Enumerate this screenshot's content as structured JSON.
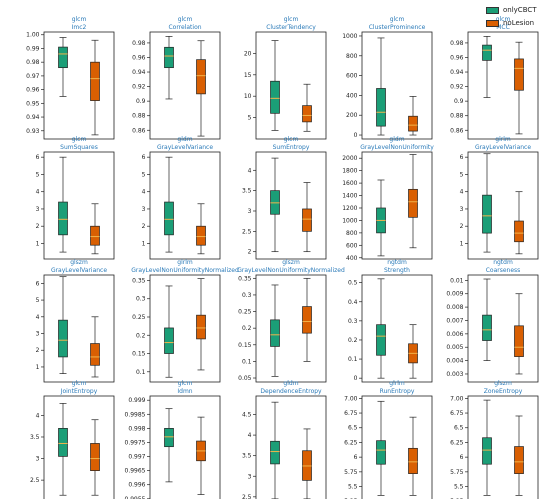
{
  "legend": {
    "items": [
      {
        "name": "onlyCBCT",
        "color": "#1b9e77"
      },
      {
        "name": "noLesion",
        "color": "#d95f02"
      }
    ]
  },
  "chart_data": [
    {
      "type": "box",
      "group": "glcm",
      "feature": "Imc2",
      "ticks": [
        0.93,
        0.94,
        0.95,
        0.96,
        0.97,
        0.98,
        0.99,
        "1.00"
      ],
      "ylim": [
        0.924,
        1.002
      ],
      "series": [
        {
          "name": "onlyCBCT",
          "whislo": 0.955,
          "q1": 0.976,
          "med": 0.986,
          "q3": 0.991,
          "whishi": 0.998
        },
        {
          "name": "noLesion",
          "whislo": 0.927,
          "q1": 0.952,
          "med": 0.968,
          "q3": 0.98,
          "whishi": 0.996
        }
      ]
    },
    {
      "type": "box",
      "group": "glcm",
      "feature": "Correlation",
      "ticks": [
        0.86,
        0.88,
        0.9,
        0.92,
        0.94,
        0.96,
        0.98
      ],
      "ylim": [
        0.848,
        0.995
      ],
      "series": [
        {
          "name": "onlyCBCT",
          "whislo": 0.903,
          "q1": 0.946,
          "med": 0.962,
          "q3": 0.974,
          "whishi": 0.989
        },
        {
          "name": "noLesion",
          "whislo": 0.852,
          "q1": 0.91,
          "med": 0.935,
          "q3": 0.957,
          "whishi": 0.983
        }
      ]
    },
    {
      "type": "box",
      "group": "glcm",
      "feature": "ClusterTendency",
      "ticks": [
        5,
        10,
        15,
        20
      ],
      "ylim": [
        0,
        25
      ],
      "series": [
        {
          "name": "onlyCBCT",
          "whislo": 2.0,
          "q1": 6.0,
          "med": 9.5,
          "q3": 13.5,
          "whishi": 23.0
        },
        {
          "name": "noLesion",
          "whislo": 1.8,
          "q1": 4.0,
          "med": 5.5,
          "q3": 7.8,
          "whishi": 12.8
        }
      ]
    },
    {
      "type": "box",
      "group": "glcm",
      "feature": "ClusterProminence",
      "ticks": [
        0,
        200,
        400,
        600,
        800,
        1000
      ],
      "ylim": [
        -40,
        1040
      ],
      "series": [
        {
          "name": "onlyCBCT",
          "whislo": 0,
          "q1": 90,
          "med": 230,
          "q3": 470,
          "whishi": 980
        },
        {
          "name": "noLesion",
          "whislo": 0,
          "q1": 40,
          "med": 100,
          "q3": 190,
          "whishi": 390
        }
      ]
    },
    {
      "type": "box",
      "group": "glcm",
      "feature": "MCC",
      "ticks": [
        0.86,
        0.88,
        0.9,
        0.92,
        0.94,
        0.96,
        0.98
      ],
      "ylim": [
        0.848,
        0.995
      ],
      "series": [
        {
          "name": "onlyCBCT",
          "whislo": 0.905,
          "q1": 0.956,
          "med": 0.97,
          "q3": 0.977,
          "whishi": 0.989
        },
        {
          "name": "noLesion",
          "whislo": 0.855,
          "q1": 0.915,
          "med": 0.945,
          "q3": 0.958,
          "whishi": 0.981
        }
      ]
    },
    {
      "type": "box",
      "group": "glcm",
      "feature": "SumSquares",
      "ticks": [
        1,
        2,
        3,
        4,
        5,
        6
      ],
      "ylim": [
        0.1,
        6.3
      ],
      "series": [
        {
          "name": "onlyCBCT",
          "whislo": 0.5,
          "q1": 1.5,
          "med": 2.4,
          "q3": 3.4,
          "whishi": 6.0
        },
        {
          "name": "noLesion",
          "whislo": 0.4,
          "q1": 0.9,
          "med": 1.4,
          "q3": 2.0,
          "whishi": 3.3
        }
      ]
    },
    {
      "type": "box",
      "group": "gldm",
      "feature": "GrayLevelVariance",
      "ticks": [
        1,
        2,
        3,
        4,
        5,
        6
      ],
      "ylim": [
        0.1,
        6.3
      ],
      "series": [
        {
          "name": "onlyCBCT",
          "whislo": 0.5,
          "q1": 1.5,
          "med": 2.4,
          "q3": 3.4,
          "whishi": 6.0
        },
        {
          "name": "noLesion",
          "whislo": 0.4,
          "q1": 0.9,
          "med": 1.4,
          "q3": 2.0,
          "whishi": 3.3
        }
      ]
    },
    {
      "type": "box",
      "group": "glcm",
      "feature": "SumEntropy",
      "ticks": [
        2.0,
        2.5,
        3.0,
        3.5,
        4.0
      ],
      "ylim": [
        1.82,
        4.45
      ],
      "series": [
        {
          "name": "onlyCBCT",
          "whislo": 2.0,
          "q1": 2.92,
          "med": 3.2,
          "q3": 3.5,
          "whishi": 4.3
        },
        {
          "name": "noLesion",
          "whislo": 2.0,
          "q1": 2.5,
          "med": 2.8,
          "q3": 3.05,
          "whishi": 3.7
        }
      ]
    },
    {
      "type": "box",
      "group": "gldm",
      "feature": "GrayLevelNonUniformity",
      "ticks": [
        400,
        600,
        800,
        1000,
        1200,
        1400,
        1600,
        1800,
        2000
      ],
      "ylim": [
        380,
        2100
      ],
      "series": [
        {
          "name": "onlyCBCT",
          "whislo": 430,
          "q1": 800,
          "med": 1000,
          "q3": 1200,
          "whishi": 1650
        },
        {
          "name": "noLesion",
          "whislo": 560,
          "q1": 1050,
          "med": 1300,
          "q3": 1500,
          "whishi": 2060
        }
      ]
    },
    {
      "type": "box",
      "group": "glrlm",
      "feature": "GrayLevelVariance",
      "ticks": [
        1,
        2,
        3,
        4,
        5,
        6
      ],
      "ylim": [
        0.1,
        6.3
      ],
      "series": [
        {
          "name": "onlyCBCT",
          "whislo": 0.5,
          "q1": 1.6,
          "med": 2.6,
          "q3": 3.8,
          "whishi": 6.2
        },
        {
          "name": "noLesion",
          "whislo": 0.4,
          "q1": 1.1,
          "med": 1.6,
          "q3": 2.3,
          "whishi": 4.0
        }
      ]
    },
    {
      "type": "box",
      "group": "glszm",
      "feature": "GrayLevelVariance",
      "ticks": [
        1,
        2,
        3,
        4,
        5,
        6
      ],
      "ylim": [
        0.1,
        6.5
      ],
      "series": [
        {
          "name": "onlyCBCT",
          "whislo": 0.6,
          "q1": 1.6,
          "med": 2.6,
          "q3": 3.8,
          "whishi": 6.4
        },
        {
          "name": "noLesion",
          "whislo": 0.4,
          "q1": 1.1,
          "med": 1.6,
          "q3": 2.4,
          "whishi": 4.0
        }
      ]
    },
    {
      "type": "box",
      "group": "glrlm",
      "feature": "GrayLevelNonUniformityNormalized",
      "ticks": [
        0.1,
        0.15,
        0.2,
        0.25,
        0.3,
        0.35
      ],
      "ylim": [
        0.072,
        0.365
      ],
      "series": [
        {
          "name": "onlyCBCT",
          "whislo": 0.085,
          "q1": 0.15,
          "med": 0.18,
          "q3": 0.22,
          "whishi": 0.335
        },
        {
          "name": "noLesion",
          "whislo": 0.105,
          "q1": 0.19,
          "med": 0.22,
          "q3": 0.255,
          "whishi": 0.355
        }
      ]
    },
    {
      "type": "box",
      "group": "glszm",
      "feature": "GrayLevelNonUniformityNormalized",
      "ticks": [
        0.05,
        0.1,
        0.15,
        0.2,
        0.25,
        0.3,
        0.35
      ],
      "ylim": [
        0.038,
        0.36
      ],
      "series": [
        {
          "name": "onlyCBCT",
          "whislo": 0.055,
          "q1": 0.145,
          "med": 0.18,
          "q3": 0.225,
          "whishi": 0.33
        },
        {
          "name": "noLesion",
          "whislo": 0.1,
          "q1": 0.185,
          "med": 0.22,
          "q3": 0.265,
          "whishi": 0.35
        }
      ]
    },
    {
      "type": "box",
      "group": "ngtdm",
      "feature": "Strength",
      "ticks": [
        0.0,
        0.1,
        0.2,
        0.3,
        0.4,
        0.5
      ],
      "ylim": [
        -0.02,
        0.54
      ],
      "series": [
        {
          "name": "onlyCBCT",
          "whislo": 0.0,
          "q1": 0.12,
          "med": 0.22,
          "q3": 0.28,
          "whishi": 0.52
        },
        {
          "name": "noLesion",
          "whislo": 0.0,
          "q1": 0.08,
          "med": 0.13,
          "q3": 0.18,
          "whishi": 0.28
        }
      ]
    },
    {
      "type": "box",
      "group": "ngtdm",
      "feature": "Coarseness",
      "ticks": [
        0.003,
        0.004,
        0.005,
        0.006,
        0.007,
        0.008,
        0.009,
        0.01
      ],
      "ylim": [
        0.0024,
        0.0104
      ],
      "series": [
        {
          "name": "onlyCBCT",
          "whislo": 0.004,
          "q1": 0.0055,
          "med": 0.0063,
          "q3": 0.0074,
          "whishi": 0.0101
        },
        {
          "name": "noLesion",
          "whislo": 0.003,
          "q1": 0.0043,
          "med": 0.005,
          "q3": 0.0066,
          "whishi": 0.009
        }
      ]
    },
    {
      "type": "box",
      "group": "glcm",
      "feature": "JointEntropy",
      "ticks": [
        2.0,
        2.5,
        3.0,
        3.5,
        4.0
      ],
      "ylim": [
        1.97,
        4.45
      ],
      "series": [
        {
          "name": "onlyCBCT",
          "whislo": 2.15,
          "q1": 3.05,
          "med": 3.35,
          "q3": 3.7,
          "whishi": 4.28
        },
        {
          "name": "noLesion",
          "whislo": 2.15,
          "q1": 2.72,
          "med": 3.0,
          "q3": 3.35,
          "whishi": 3.9
        }
      ]
    },
    {
      "type": "box",
      "group": "glcm",
      "feature": "Idmn",
      "ticks": [
        0.9955,
        0.996,
        0.9965,
        0.997,
        0.9975,
        0.998,
        0.9985,
        0.999
      ],
      "ylim": [
        0.99535,
        0.99915
      ],
      "series": [
        {
          "name": "onlyCBCT",
          "whislo": 0.9961,
          "q1": 0.99735,
          "med": 0.9977,
          "q3": 0.998,
          "whishi": 0.9987
        },
        {
          "name": "noLesion",
          "whislo": 0.99565,
          "q1": 0.99685,
          "med": 0.9972,
          "q3": 0.99755,
          "whishi": 0.9984
        }
      ]
    },
    {
      "type": "box",
      "group": "gldm",
      "feature": "DependenceEntropy",
      "ticks": [
        2.5,
        3.0,
        3.5,
        4.0,
        4.5
      ],
      "ylim": [
        2.35,
        4.95
      ],
      "series": [
        {
          "name": "onlyCBCT",
          "whislo": 2.45,
          "q1": 3.3,
          "med": 3.6,
          "q3": 3.85,
          "whishi": 4.8
        },
        {
          "name": "noLesion",
          "whislo": 2.45,
          "q1": 2.9,
          "med": 3.25,
          "q3": 3.62,
          "whishi": 4.15
        }
      ]
    },
    {
      "type": "box",
      "group": "glrlm",
      "feature": "RunEntropy",
      "ticks": [
        5.25,
        5.5,
        5.75,
        6.0,
        6.25,
        6.5,
        6.75,
        "7.00"
      ],
      "ylim": [
        5.22,
        7.04
      ],
      "series": [
        {
          "name": "onlyCBCT",
          "whislo": 5.35,
          "q1": 5.88,
          "med": 6.12,
          "q3": 6.28,
          "whishi": 6.95
        },
        {
          "name": "noLesion",
          "whislo": 5.35,
          "q1": 5.72,
          "med": 5.92,
          "q3": 6.15,
          "whishi": 6.68
        }
      ]
    },
    {
      "type": "box",
      "group": "glszm",
      "feature": "ZoneEntropy",
      "ticks": [
        5.25,
        5.5,
        5.75,
        6.0,
        6.25,
        6.5,
        6.75,
        "7.00"
      ],
      "ylim": [
        5.22,
        7.04
      ],
      "series": [
        {
          "name": "onlyCBCT",
          "whislo": 5.35,
          "q1": 5.88,
          "med": 6.12,
          "q3": 6.33,
          "whishi": 6.97
        },
        {
          "name": "noLesion",
          "whislo": 5.35,
          "q1": 5.72,
          "med": 5.92,
          "q3": 6.18,
          "whishi": 6.7
        }
      ]
    }
  ]
}
